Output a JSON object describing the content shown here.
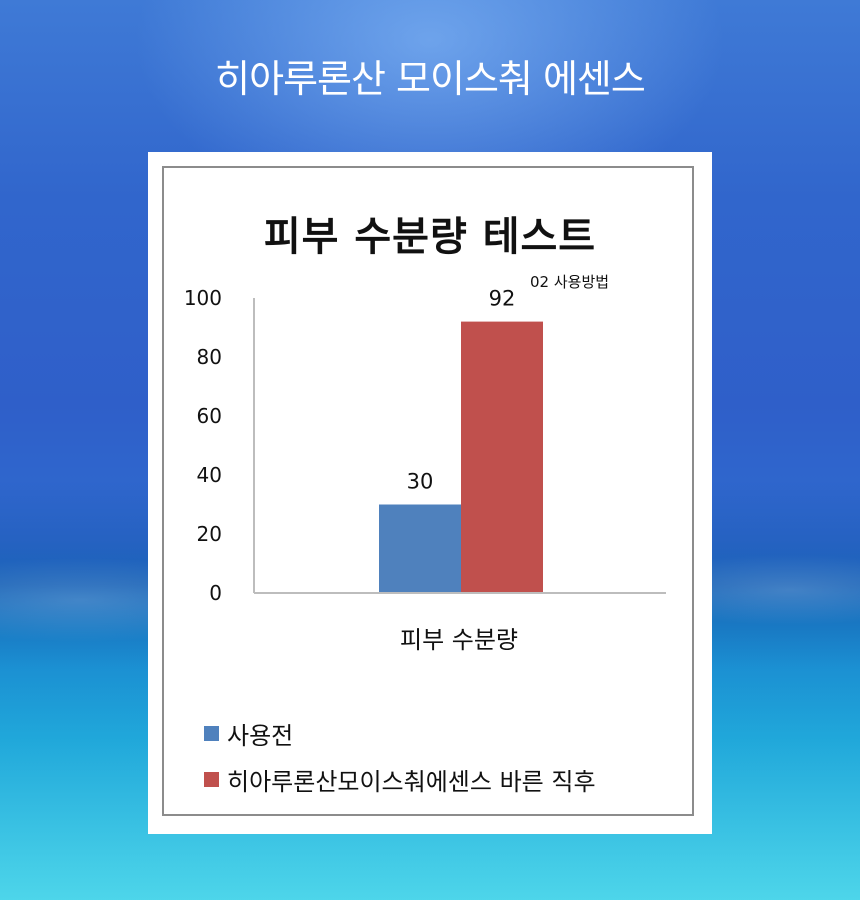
{
  "page": {
    "headline": "히아루론산 모이스춰 에센스"
  },
  "overlay_label": "02  사용방법",
  "colors": {
    "before": "#4f81bd",
    "after": "#c0504d"
  },
  "chart_data": {
    "type": "bar",
    "title": "피부 수분량 테스트",
    "categories": [
      "피부 수분량"
    ],
    "series": [
      {
        "name": "사용전",
        "values": [
          30
        ]
      },
      {
        "name": "히아루론산모이스춰에센스 바른 직후",
        "values": [
          92
        ]
      }
    ],
    "data_labels": [
      "30",
      "92"
    ],
    "xlabel": "",
    "ylabel": "",
    "ylim": [
      0,
      100
    ],
    "yticks": [
      0,
      20,
      40,
      60,
      80,
      100
    ],
    "ytick_labels": [
      "0",
      "20",
      "40",
      "60",
      "80",
      "100"
    ],
    "grid": false,
    "legend_position": "bottom-left"
  }
}
